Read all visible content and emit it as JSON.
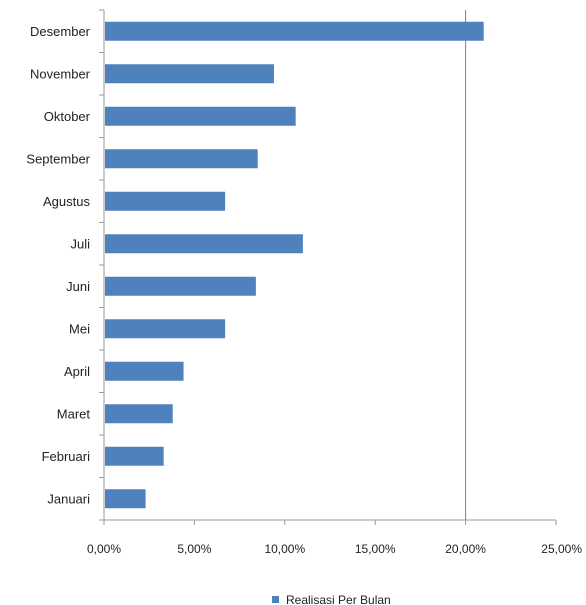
{
  "chart_data": {
    "type": "bar",
    "orientation": "horizontal",
    "categories": [
      "Januari",
      "Februari",
      "Maret",
      "April",
      "Mei",
      "Juni",
      "Juli",
      "Agustus",
      "September",
      "Oktober",
      "November",
      "Desember"
    ],
    "series": [
      {
        "name": "Realisasi Per Bulan",
        "color": "#4f81bd",
        "values": [
          2.3,
          3.3,
          3.8,
          4.4,
          6.7,
          8.4,
          11.0,
          6.7,
          8.5,
          10.6,
          9.4,
          21.0
        ]
      }
    ],
    "x_ticks": [
      "0,00%",
      "5,00%",
      "10,00%",
      "15,00%",
      "20,00%",
      "25,00%"
    ],
    "xlim": [
      0,
      25
    ],
    "reference_line": 20,
    "grid": false,
    "legend_position": "bottom"
  }
}
